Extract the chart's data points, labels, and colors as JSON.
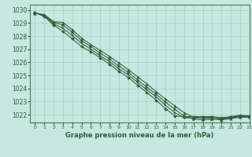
{
  "title": "Graphe pression niveau de la mer (hPa)",
  "bg_color": "#c6e8e0",
  "grid_color": "#9ecec4",
  "line_color": "#2d5e3a",
  "spine_color": "#4a7a5a",
  "xlim": [
    -0.5,
    23
  ],
  "ylim": [
    1021.4,
    1030.4
  ],
  "yticks": [
    1022,
    1023,
    1024,
    1025,
    1026,
    1027,
    1028,
    1029,
    1030
  ],
  "xticks": [
    0,
    1,
    2,
    3,
    4,
    5,
    6,
    7,
    8,
    9,
    10,
    11,
    12,
    13,
    14,
    15,
    16,
    17,
    18,
    19,
    20,
    21,
    22,
    23
  ],
  "series": [
    [
      1029.75,
      1029.65,
      1029.1,
      1029.05,
      1028.5,
      1027.85,
      1027.35,
      1026.9,
      1026.45,
      1025.95,
      1025.45,
      1024.9,
      1024.35,
      1023.75,
      1023.2,
      1022.65,
      1022.15,
      1021.8,
      1021.75,
      1021.7,
      1021.6,
      1021.7,
      1021.8,
      1021.8
    ],
    [
      1029.75,
      1029.6,
      1029.05,
      1028.85,
      1028.3,
      1027.65,
      1027.2,
      1026.7,
      1026.25,
      1025.7,
      1025.25,
      1024.65,
      1024.1,
      1023.55,
      1022.95,
      1022.4,
      1021.9,
      1021.65,
      1021.6,
      1021.65,
      1021.65,
      1021.75,
      1021.85,
      1021.85
    ],
    [
      1029.8,
      1029.55,
      1028.95,
      1028.6,
      1028.05,
      1027.45,
      1027.0,
      1026.5,
      1026.05,
      1025.5,
      1025.05,
      1024.45,
      1023.9,
      1023.35,
      1022.7,
      1022.15,
      1021.75,
      1021.75,
      1021.75,
      1021.8,
      1021.7,
      1021.8,
      1021.9,
      1021.9
    ],
    [
      1029.8,
      1029.5,
      1028.85,
      1028.35,
      1027.8,
      1027.2,
      1026.8,
      1026.35,
      1025.85,
      1025.3,
      1024.85,
      1024.25,
      1023.7,
      1023.1,
      1022.45,
      1021.9,
      1021.85,
      1021.85,
      1021.85,
      1021.85,
      1021.75,
      1021.85,
      1021.95,
      1021.9
    ]
  ]
}
